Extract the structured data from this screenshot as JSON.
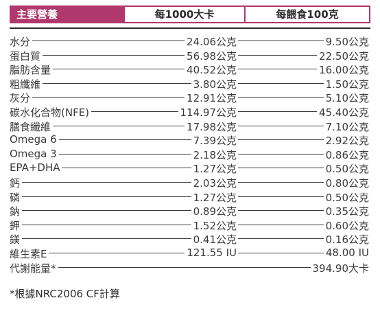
{
  "header": {
    "title": "主要營養",
    "col1": "每1000大卡",
    "col2": "每餵食100克"
  },
  "rows": [
    {
      "label": "水分",
      "v1": "24.06公克",
      "v2": "9.50公克"
    },
    {
      "label": "蛋白質",
      "v1": "56.98公克",
      "v2": "22.50公克"
    },
    {
      "label": "脂肪含量",
      "v1": "40.52公克",
      "v2": "16.00公克"
    },
    {
      "label": "粗纖維",
      "v1": "3.80公克",
      "v2": "1.50公克"
    },
    {
      "label": "灰分",
      "v1": "12.91公克",
      "v2": "5.10公克"
    },
    {
      "label": "碳水化合物(NFE)",
      "v1": "114.97公克",
      "v2": "45.40公克"
    },
    {
      "label": "膳食纖維",
      "v1": "17.98公克",
      "v2": "7.10公克"
    },
    {
      "label": "Omega 6",
      "v1": "7.39公克",
      "v2": "2.92公克"
    },
    {
      "label": "Omega 3",
      "v1": "2.18公克",
      "v2": "0.86公克"
    },
    {
      "label": "EPA+DHA",
      "v1": "1.27公克",
      "v2": "0.50公克"
    },
    {
      "label": "鈣",
      "v1": "2.03公克",
      "v2": "0.80公克"
    },
    {
      "label": "磷",
      "v1": "1.27公克",
      "v2": "0.50公克"
    },
    {
      "label": "鈉",
      "v1": "0.89公克",
      "v2": "0.35公克"
    },
    {
      "label": "鉀",
      "v1": "1.52公克",
      "v2": "0.60公克"
    },
    {
      "label": "鎂",
      "v1": "0.41公克",
      "v2": "0.16公克"
    },
    {
      "label": "維生素E",
      "v1": "121.55 IU",
      "v2": "48.00 IU"
    }
  ],
  "energy": {
    "label": "代謝能量*",
    "value": "394.90大卡"
  },
  "footnote": "*根據NRC2006 CF計算"
}
